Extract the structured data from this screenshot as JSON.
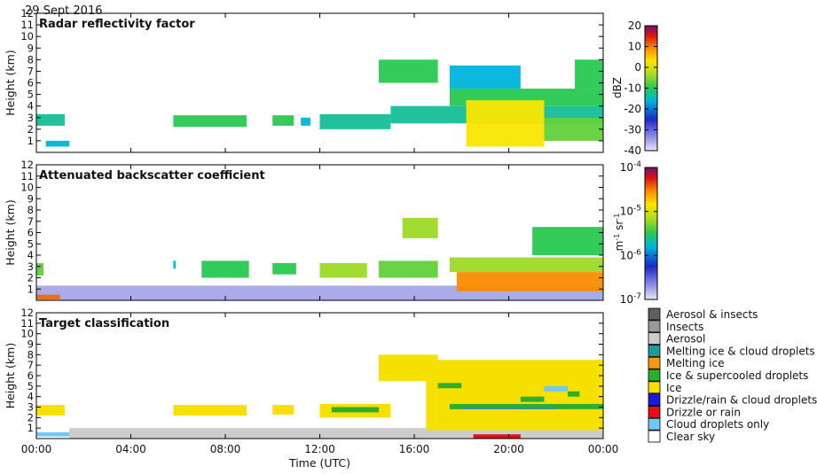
{
  "figure": {
    "date": "29 Sept 2016",
    "time_axis_label": "Time (UTC)",
    "time_ticks": [
      "00:00",
      "04:00",
      "08:00",
      "12:00",
      "16:00",
      "20:00",
      "00:00"
    ]
  },
  "chart_data": [
    {
      "type": "heatmap",
      "title": "Radar reflectivity factor",
      "ylabel": "Height (km)",
      "ylim": [
        0,
        12
      ],
      "yticks": [
        "1",
        "2",
        "3",
        "4",
        "5",
        "6",
        "7",
        "8",
        "9",
        "10",
        "11",
        "12"
      ],
      "x_range_hours": [
        0,
        24
      ],
      "colorbar": {
        "label": "dBZ",
        "range": [
          -40,
          20
        ],
        "ticks": [
          "20",
          "10",
          "0",
          "-10",
          "-20",
          "-30",
          "-40"
        ]
      },
      "regions": [
        {
          "x": [
            0.0,
            1.2
          ],
          "y": [
            2.3,
            3.3
          ],
          "level": 0.45
        },
        {
          "x": [
            0.4,
            1.4
          ],
          "y": [
            0.5,
            1.0
          ],
          "level": 0.4
        },
        {
          "x": [
            5.8,
            8.9
          ],
          "y": [
            2.2,
            3.2
          ],
          "level": 0.5
        },
        {
          "x": [
            10.0,
            10.9
          ],
          "y": [
            2.3,
            3.2
          ],
          "level": 0.5
        },
        {
          "x": [
            11.2,
            11.6
          ],
          "y": [
            2.3,
            3.0
          ],
          "level": 0.4
        },
        {
          "x": [
            12.0,
            15.0
          ],
          "y": [
            2.0,
            3.3
          ],
          "level": 0.45
        },
        {
          "x": [
            14.5,
            17.0
          ],
          "y": [
            6.0,
            8.0
          ],
          "level": 0.5
        },
        {
          "x": [
            17.5,
            20.5
          ],
          "y": [
            5.5,
            7.5
          ],
          "level": 0.4
        },
        {
          "x": [
            22.8,
            24.0
          ],
          "y": [
            5.5,
            8.0
          ],
          "level": 0.5
        },
        {
          "x": [
            15.0,
            24.0
          ],
          "y": [
            2.5,
            4.0
          ],
          "level": 0.45
        },
        {
          "x": [
            17.5,
            24.0
          ],
          "y": [
            4.0,
            5.5
          ],
          "level": 0.5
        },
        {
          "x": [
            18.2,
            21.5
          ],
          "y": [
            0.5,
            4.5
          ],
          "level": 0.72
        },
        {
          "x": [
            21.5,
            24.0
          ],
          "y": [
            1.0,
            3.0
          ],
          "level": 0.55
        }
      ]
    },
    {
      "type": "heatmap",
      "title": "Attenuated backscatter coefficient",
      "ylabel": "Height (km)",
      "ylim": [
        0,
        12
      ],
      "yticks": [
        "1",
        "2",
        "3",
        "4",
        "5",
        "6",
        "7",
        "8",
        "9",
        "10",
        "11",
        "12"
      ],
      "x_range_hours": [
        0,
        24
      ],
      "colorbar": {
        "label": "m-1 sr-1",
        "scale": "log",
        "range": [
          1e-07,
          0.0001
        ],
        "ticks": [
          "10-4",
          "10-5",
          "10-6",
          "10-7"
        ]
      },
      "regions": [
        {
          "x": [
            0.0,
            24.0
          ],
          "y": [
            0.0,
            1.3
          ],
          "level": 0.08
        },
        {
          "x": [
            0.0,
            1.0
          ],
          "y": [
            0.1,
            0.5
          ],
          "level": 0.85
        },
        {
          "x": [
            0.0,
            0.3
          ],
          "y": [
            2.2,
            3.3
          ],
          "level": 0.55
        },
        {
          "x": [
            5.8,
            5.9
          ],
          "y": [
            2.8,
            3.5
          ],
          "level": 0.4
        },
        {
          "x": [
            7.0,
            9.0
          ],
          "y": [
            2.0,
            3.5
          ],
          "level": 0.5
        },
        {
          "x": [
            10.0,
            11.0
          ],
          "y": [
            2.3,
            3.3
          ],
          "level": 0.5
        },
        {
          "x": [
            12.0,
            14.0
          ],
          "y": [
            2.0,
            3.3
          ],
          "level": 0.6
        },
        {
          "x": [
            14.5,
            17.0
          ],
          "y": [
            2.0,
            3.5
          ],
          "level": 0.55
        },
        {
          "x": [
            15.5,
            17.0
          ],
          "y": [
            5.5,
            7.3
          ],
          "level": 0.6
        },
        {
          "x": [
            17.5,
            24.0
          ],
          "y": [
            2.5,
            3.8
          ],
          "level": 0.6
        },
        {
          "x": [
            17.8,
            24.0
          ],
          "y": [
            0.8,
            2.5
          ],
          "level": 0.82
        },
        {
          "x": [
            21.0,
            24.0
          ],
          "y": [
            4.0,
            6.5
          ],
          "level": 0.5
        }
      ]
    },
    {
      "type": "heatmap",
      "title": "Target classification",
      "ylabel": "Height (km)",
      "ylim": [
        0,
        12
      ],
      "yticks": [
        "1",
        "2",
        "3",
        "4",
        "5",
        "6",
        "7",
        "8",
        "9",
        "10",
        "11",
        "12"
      ],
      "x_range_hours": [
        0,
        24
      ],
      "legend": [
        {
          "label": "Aerosol & insects",
          "color": "#606060"
        },
        {
          "label": "Insects",
          "color": "#9a9a9a"
        },
        {
          "label": "Aerosol",
          "color": "#cccccc"
        },
        {
          "label": "Melting ice & cloud droplets",
          "color": "#1f9b9b"
        },
        {
          "label": "Melting ice",
          "color": "#f39c12"
        },
        {
          "label": "Ice & supercooled droplets",
          "color": "#2eae2e"
        },
        {
          "label": "Ice",
          "color": "#f5e000"
        },
        {
          "label": "Drizzle/rain & cloud droplets",
          "color": "#1a1ad8"
        },
        {
          "label": "Drizzle or rain",
          "color": "#e01010"
        },
        {
          "label": "Cloud droplets only",
          "color": "#6fc8f5"
        },
        {
          "label": "Clear sky",
          "color": "#ffffff"
        }
      ],
      "regions": [
        {
          "x": [
            1.4,
            24.0
          ],
          "y": [
            0.0,
            1.0
          ],
          "cls": "Aerosol"
        },
        {
          "x": [
            0.0,
            1.4
          ],
          "y": [
            0.2,
            0.6
          ],
          "cls": "Cloud droplets only"
        },
        {
          "x": [
            0.0,
            1.2
          ],
          "y": [
            2.2,
            3.2
          ],
          "cls": "Ice"
        },
        {
          "x": [
            5.8,
            8.9
          ],
          "y": [
            2.2,
            3.2
          ],
          "cls": "Ice"
        },
        {
          "x": [
            10.0,
            10.9
          ],
          "y": [
            2.3,
            3.2
          ],
          "cls": "Ice"
        },
        {
          "x": [
            12.0,
            15.0
          ],
          "y": [
            2.0,
            3.3
          ],
          "cls": "Ice"
        },
        {
          "x": [
            12.5,
            14.5
          ],
          "y": [
            2.5,
            3.0
          ],
          "cls": "Ice & supercooled droplets"
        },
        {
          "x": [
            14.5,
            17.0
          ],
          "y": [
            5.5,
            8.0
          ],
          "cls": "Ice"
        },
        {
          "x": [
            16.5,
            24.0
          ],
          "y": [
            0.8,
            7.5
          ],
          "cls": "Ice"
        },
        {
          "x": [
            17.5,
            24.0
          ],
          "y": [
            2.8,
            3.3
          ],
          "cls": "Ice & supercooled droplets"
        },
        {
          "x": [
            17.0,
            18.0
          ],
          "y": [
            4.8,
            5.3
          ],
          "cls": "Ice & supercooled droplets"
        },
        {
          "x": [
            20.5,
            21.5
          ],
          "y": [
            3.5,
            4.0
          ],
          "cls": "Ice & supercooled droplets"
        },
        {
          "x": [
            22.5,
            23.0
          ],
          "y": [
            4.0,
            4.5
          ],
          "cls": "Ice & supercooled droplets"
        },
        {
          "x": [
            18.5,
            20.5
          ],
          "y": [
            0.0,
            0.4
          ],
          "cls": "Drizzle or rain"
        },
        {
          "x": [
            18.0,
            22.0
          ],
          "y": [
            2.8,
            3.0
          ],
          "cls": "Melting ice & cloud droplets"
        },
        {
          "x": [
            21.5,
            22.5
          ],
          "y": [
            4.5,
            5.0
          ],
          "cls": "Cloud droplets only"
        }
      ]
    }
  ]
}
